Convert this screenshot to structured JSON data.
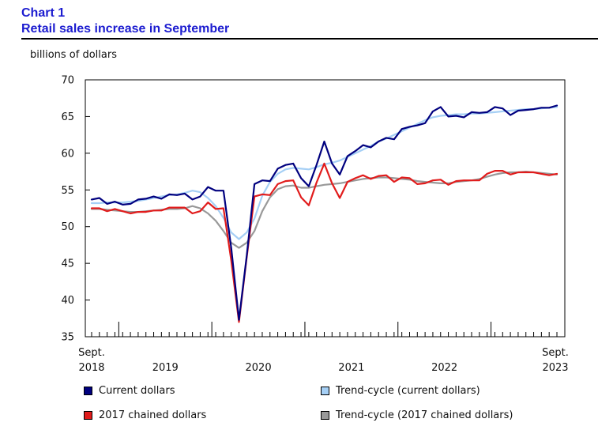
{
  "header": {
    "chart_number": "Chart 1",
    "title": "Retail sales increase in September"
  },
  "chart_data": {
    "type": "line",
    "title": "Retail sales increase in September",
    "ylabel": "billions of dollars",
    "xlabel": "",
    "ylim": [
      35,
      70
    ],
    "yticks": [
      35,
      40,
      45,
      50,
      55,
      60,
      65,
      70
    ],
    "grid": false,
    "x_start_label": [
      "Sept.",
      "2018"
    ],
    "x_end_label": [
      "Sept.",
      "2023"
    ],
    "x_year_labels": [
      {
        "label": "2019",
        "center_index": 9.5
      },
      {
        "label": "2020",
        "center_index": 21.5
      },
      {
        "label": "2021",
        "center_index": 33.5
      },
      {
        "label": "2022",
        "center_index": 45.5
      }
    ],
    "year_boundaries": [
      3.5,
      15.5,
      27.5,
      39.5,
      51.5
    ],
    "n_points": 61,
    "legend_position": "bottom",
    "series": [
      {
        "name": "Current dollars",
        "color": "#00007f",
        "values": [
          53.7,
          53.9,
          53.1,
          53.4,
          53.0,
          53.1,
          53.7,
          53.8,
          54.1,
          53.8,
          54.4,
          54.3,
          54.5,
          53.7,
          54.1,
          55.4,
          54.9,
          54.9,
          47.1,
          37.3,
          46.0,
          55.8,
          56.3,
          56.2,
          57.9,
          58.4,
          58.6,
          56.6,
          55.5,
          58.4,
          61.6,
          58.6,
          57.1,
          59.6,
          60.3,
          61.1,
          60.8,
          61.6,
          62.1,
          61.9,
          63.3,
          63.6,
          63.8,
          64.1,
          65.7,
          66.3,
          65.0,
          65.1,
          64.9,
          65.6,
          65.5,
          65.6,
          66.3,
          66.1,
          65.2,
          65.8,
          65.9,
          66.0,
          66.2,
          66.2,
          66.5
        ]
      },
      {
        "name": "Trend-cycle (current dollars)",
        "color": "#a5cff5",
        "values": [
          53.2,
          53.2,
          53.3,
          53.3,
          53.3,
          53.4,
          53.5,
          53.7,
          53.9,
          54.1,
          54.3,
          54.4,
          54.6,
          54.9,
          54.7,
          53.9,
          52.8,
          51.2,
          49.2,
          48.3,
          49.2,
          51.1,
          54.2,
          56.1,
          57.2,
          57.8,
          58.0,
          57.9,
          57.8,
          58.1,
          58.5,
          58.7,
          59.0,
          59.5,
          60.0,
          60.5,
          61.0,
          61.6,
          62.0,
          62.5,
          63.0,
          63.5,
          64.0,
          64.5,
          64.9,
          65.1,
          65.2,
          65.3,
          65.3,
          65.4,
          65.4,
          65.5,
          65.6,
          65.7,
          65.8,
          65.9,
          66.0,
          66.0,
          66.1,
          66.2,
          66.3
        ]
      },
      {
        "name": "2017 chained dollars",
        "color": "#e11c1c",
        "values": [
          52.5,
          52.5,
          52.1,
          52.4,
          52.1,
          51.8,
          52.0,
          52.0,
          52.2,
          52.2,
          52.6,
          52.6,
          52.6,
          51.8,
          52.1,
          53.3,
          52.4,
          52.5,
          45.4,
          37.0,
          45.8,
          54.1,
          54.4,
          54.3,
          55.8,
          56.2,
          56.3,
          54.0,
          52.9,
          56.0,
          58.6,
          55.9,
          53.9,
          56.1,
          56.6,
          57.0,
          56.5,
          56.9,
          57.0,
          56.1,
          56.7,
          56.6,
          55.8,
          55.9,
          56.3,
          56.4,
          55.7,
          56.2,
          56.3,
          56.3,
          56.3,
          57.2,
          57.6,
          57.6,
          57.1,
          57.4,
          57.4,
          57.4,
          57.2,
          57.0,
          57.2
        ]
      },
      {
        "name": "Trend-cycle (2017 chained dollars)",
        "color": "#999999",
        "values": [
          52.4,
          52.4,
          52.3,
          52.2,
          52.1,
          52.0,
          52.0,
          52.1,
          52.2,
          52.3,
          52.4,
          52.4,
          52.5,
          52.8,
          52.5,
          51.8,
          50.8,
          49.4,
          47.8,
          47.1,
          47.8,
          49.4,
          52.1,
          54.0,
          55.1,
          55.5,
          55.6,
          55.3,
          55.3,
          55.5,
          55.7,
          55.8,
          55.9,
          56.1,
          56.3,
          56.5,
          56.6,
          56.7,
          56.7,
          56.6,
          56.5,
          56.4,
          56.2,
          56.1,
          56.0,
          55.9,
          55.9,
          56.1,
          56.2,
          56.3,
          56.5,
          56.8,
          57.1,
          57.3,
          57.4,
          57.4,
          57.5,
          57.4,
          57.3,
          57.2,
          57.1
        ]
      }
    ]
  },
  "legend": [
    {
      "label": "Current dollars",
      "color": "#00007f"
    },
    {
      "label": "Trend-cycle (current dollars)",
      "color": "#a5cff5"
    },
    {
      "label": "2017 chained dollars",
      "color": "#e11c1c"
    },
    {
      "label": "Trend-cycle (2017 chained dollars)",
      "color": "#999999"
    }
  ]
}
